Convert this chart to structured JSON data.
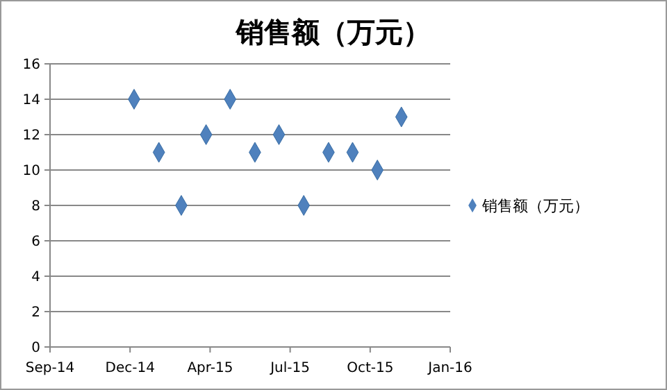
{
  "chart_data": {
    "type": "scatter",
    "title": "销售额（万元）",
    "x": [
      "2015-01-01",
      "2015-02-01",
      "2015-03-01",
      "2015-04-01",
      "2015-05-01",
      "2015-06-01",
      "2015-07-01",
      "2015-08-01",
      "2015-09-01",
      "2015-10-01",
      "2015-11-01",
      "2015-12-01"
    ],
    "series": [
      {
        "name": "销售额（万元）",
        "color": "#4f81bd",
        "values": [
          14,
          11,
          8,
          12,
          14,
          11,
          12,
          8,
          11,
          11,
          10,
          13
        ]
      }
    ],
    "xlim": [
      "2014-09-18",
      "2016-01-31"
    ],
    "xticks": [
      {
        "value": "2014-09-18",
        "label": "Sep-14"
      },
      {
        "value": "2014-12-27",
        "label": "Dec-14"
      },
      {
        "value": "2015-04-06",
        "label": "Apr-15"
      },
      {
        "value": "2015-07-15",
        "label": "Jul-15"
      },
      {
        "value": "2015-10-23",
        "label": "Oct-15"
      },
      {
        "value": "2016-01-31",
        "label": "Jan-16"
      }
    ],
    "ylim": [
      0,
      16
    ],
    "yticks": [
      0,
      2,
      4,
      6,
      8,
      10,
      12,
      14,
      16
    ],
    "grid": "y",
    "legend": "right",
    "marker": "diamond"
  }
}
